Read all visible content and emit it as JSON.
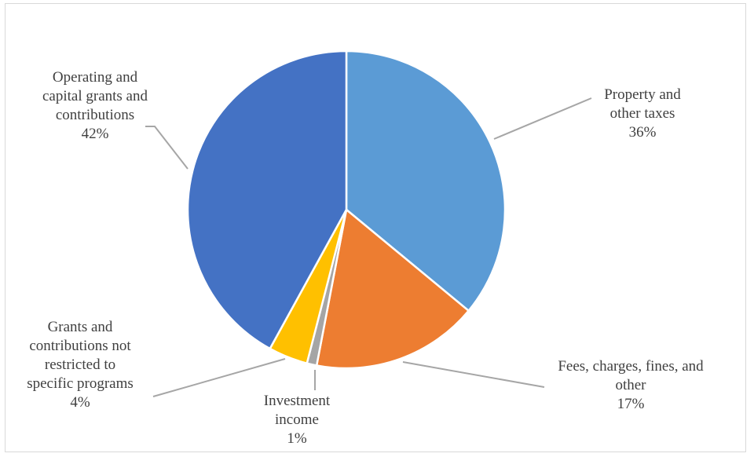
{
  "chart_data": {
    "type": "pie",
    "slices": [
      {
        "name": "Property and other taxes",
        "value": 36,
        "label_lines": [
          "Property and",
          "other taxes"
        ],
        "pct_text": "36%",
        "color": "#5b9bd5"
      },
      {
        "name": "Fees, charges, fines, and other",
        "value": 17,
        "label_lines": [
          "Fees, charges, fines, and",
          "other"
        ],
        "pct_text": "17%",
        "color": "#ed7d31"
      },
      {
        "name": "Investment income",
        "value": 1,
        "label_lines": [
          "Investment",
          "income"
        ],
        "pct_text": "1%",
        "color": "#a5a5a5"
      },
      {
        "name": "Grants and contributions not restricted to specific programs",
        "value": 4,
        "label_lines": [
          "Grants and",
          "contributions not",
          "restricted to",
          "specific programs"
        ],
        "pct_text": "4%",
        "color": "#ffc000"
      },
      {
        "name": "Operating and capital grants and contributions",
        "value": 42,
        "label_lines": [
          "Operating and",
          "capital grants and",
          "contributions"
        ],
        "pct_text": "42%",
        "color": "#4472c4"
      }
    ],
    "start_angle": "12 o'clock",
    "direction": "clockwise",
    "legend": "none",
    "data_labels": "outside with leader lines"
  }
}
